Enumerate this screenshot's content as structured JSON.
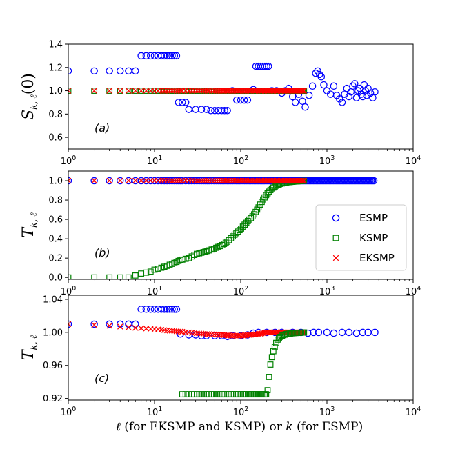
{
  "chart_data": [
    {
      "type": "scatter",
      "panel_tag": "(a)",
      "ylabel": "S_{k,ℓ}(0)",
      "ylabel_main": "S",
      "ylabel_sub": "k, ℓ",
      "ylabel_tail": "(0)",
      "xscale": "log",
      "xlim": [
        1,
        10000
      ],
      "ylim": [
        0.5,
        1.4
      ],
      "yticks": [
        "0.6",
        "0.8",
        "1.0",
        "1.2",
        "1.4"
      ],
      "ytick_values": [
        0.6,
        0.8,
        1.0,
        1.2,
        1.4
      ],
      "xticks": [
        "10^0",
        "10^1",
        "10^2",
        "10^3",
        "10^4"
      ],
      "series": [
        {
          "name": "ESMP",
          "marker": "circle",
          "color": "#0000ff",
          "points": [
            [
              1,
              1.17
            ],
            [
              2,
              1.17
            ],
            [
              3,
              1.17
            ],
            [
              4,
              1.17
            ],
            [
              5,
              1.17
            ],
            [
              6,
              1.17
            ],
            [
              7,
              1.3
            ],
            [
              8,
              1.3
            ],
            [
              9,
              1.3
            ],
            [
              10,
              1.3
            ],
            [
              11,
              1.3
            ],
            [
              12,
              1.3
            ],
            [
              13,
              1.3
            ],
            [
              14,
              1.3
            ],
            [
              15,
              1.3
            ],
            [
              16,
              1.3
            ],
            [
              17,
              1.3
            ],
            [
              18,
              1.3
            ],
            [
              19,
              0.9
            ],
            [
              21,
              0.9
            ],
            [
              23,
              0.9
            ],
            [
              25,
              0.84
            ],
            [
              30,
              0.84
            ],
            [
              35,
              0.84
            ],
            [
              40,
              0.84
            ],
            [
              45,
              0.83
            ],
            [
              50,
              0.83
            ],
            [
              55,
              0.83
            ],
            [
              60,
              0.83
            ],
            [
              65,
              0.83
            ],
            [
              70,
              0.83
            ],
            [
              80,
              1.0
            ],
            [
              90,
              0.92
            ],
            [
              100,
              0.92
            ],
            [
              110,
              0.92
            ],
            [
              120,
              0.92
            ],
            [
              140,
              1.01
            ],
            [
              150,
              1.21
            ],
            [
              160,
              1.21
            ],
            [
              170,
              1.21
            ],
            [
              180,
              1.21
            ],
            [
              190,
              1.21
            ],
            [
              200,
              1.21
            ],
            [
              210,
              1.21
            ],
            [
              230,
              1.0
            ],
            [
              260,
              1.0
            ],
            [
              300,
              0.98
            ],
            [
              330,
              1.0
            ],
            [
              360,
              1.02
            ],
            [
              400,
              0.95
            ],
            [
              430,
              0.9
            ],
            [
              470,
              0.97
            ],
            [
              520,
              0.91
            ],
            [
              560,
              0.86
            ],
            [
              620,
              0.96
            ],
            [
              680,
              1.04
            ],
            [
              740,
              1.15
            ],
            [
              780,
              1.17
            ],
            [
              820,
              1.14
            ],
            [
              860,
              1.12
            ],
            [
              920,
              1.05
            ],
            [
              1000,
              1.0
            ],
            [
              1100,
              0.97
            ],
            [
              1200,
              1.04
            ],
            [
              1300,
              0.96
            ],
            [
              1400,
              0.93
            ],
            [
              1500,
              0.9
            ],
            [
              1600,
              0.97
            ],
            [
              1700,
              1.02
            ],
            [
              1800,
              0.95
            ],
            [
              1900,
              0.99
            ],
            [
              2000,
              1.04
            ],
            [
              2100,
              1.06
            ],
            [
              2200,
              0.94
            ],
            [
              2300,
              1.0
            ],
            [
              2400,
              1.02
            ],
            [
              2500,
              0.97
            ],
            [
              2600,
              0.95
            ],
            [
              2700,
              1.05
            ],
            [
              2800,
              1.0
            ],
            [
              2900,
              0.96
            ],
            [
              3000,
              1.02
            ],
            [
              3200,
              0.98
            ],
            [
              3400,
              0.94
            ],
            [
              3600,
              0.99
            ]
          ]
        },
        {
          "name": "KSMP",
          "marker": "square",
          "color": "#008000",
          "const": 1.0,
          "xmax": 560
        },
        {
          "name": "EKSMP",
          "marker": "x",
          "color": "#ff0000",
          "const": 1.0,
          "xmax": 560
        }
      ]
    },
    {
      "type": "scatter",
      "panel_tag": "(b)",
      "ylabel_main": "T",
      "ylabel_sub": "k, ℓ",
      "ylabel_tail": "",
      "xscale": "log",
      "xlim": [
        1,
        10000
      ],
      "ylim": [
        -0.02,
        1.1
      ],
      "yticks": [
        "0.0",
        "0.2",
        "0.4",
        "0.6",
        "0.8",
        "1.0"
      ],
      "ytick_values": [
        0.0,
        0.2,
        0.4,
        0.6,
        0.8,
        1.0
      ],
      "xticks": [
        "10^0",
        "10^1",
        "10^2",
        "10^3",
        "10^4"
      ],
      "legend": {
        "position": "right",
        "entries": [
          "ESMP",
          "KSMP",
          "EKSMP"
        ]
      },
      "series": [
        {
          "name": "ESMP",
          "marker": "circle",
          "color": "#0000ff",
          "const": 1.0,
          "xmax": 3600
        },
        {
          "name": "KSMP",
          "marker": "square",
          "color": "#008000",
          "curve": [
            [
              1,
              0.0
            ],
            [
              2,
              0.0
            ],
            [
              3,
              0.0
            ],
            [
              4,
              0.0
            ],
            [
              5,
              0.0
            ],
            [
              6,
              0.02
            ],
            [
              7,
              0.04
            ],
            [
              8,
              0.05
            ],
            [
              9,
              0.06
            ],
            [
              10,
              0.08
            ],
            [
              12,
              0.1
            ],
            [
              14,
              0.12
            ],
            [
              17,
              0.15
            ],
            [
              20,
              0.18
            ],
            [
              25,
              0.2
            ],
            [
              30,
              0.24
            ],
            [
              40,
              0.27
            ],
            [
              50,
              0.3
            ],
            [
              60,
              0.33
            ],
            [
              70,
              0.37
            ],
            [
              80,
              0.42
            ],
            [
              100,
              0.5
            ],
            [
              120,
              0.58
            ],
            [
              140,
              0.64
            ],
            [
              160,
              0.72
            ],
            [
              180,
              0.8
            ],
            [
              200,
              0.86
            ],
            [
              230,
              0.92
            ],
            [
              270,
              0.96
            ],
            [
              320,
              0.98
            ],
            [
              400,
              0.99
            ],
            [
              560,
              1.0
            ]
          ]
        },
        {
          "name": "EKSMP",
          "marker": "x",
          "color": "#ff0000",
          "const": 1.0,
          "xmax": 560
        }
      ]
    },
    {
      "type": "scatter",
      "panel_tag": "(c)",
      "ylabel_main": "T",
      "ylabel_sub": "k, ℓ",
      "ylabel_tail": "",
      "xlabel": "ℓ (for EKSMP and KSMP) or k (for ESMP)",
      "xscale": "log",
      "xlim": [
        1,
        10000
      ],
      "ylim": [
        0.918,
        1.045
      ],
      "yticks": [
        "0.92",
        "0.96",
        "1.00",
        "1.04"
      ],
      "ytick_values": [
        0.92,
        0.96,
        1.0,
        1.04
      ],
      "xticks": [
        "10^0",
        "10^1",
        "10^2",
        "10^3",
        "10^4"
      ],
      "series": [
        {
          "name": "ESMP",
          "marker": "circle",
          "color": "#0000ff",
          "points": [
            [
              1,
              1.01
            ],
            [
              2,
              1.01
            ],
            [
              3,
              1.01
            ],
            [
              4,
              1.01
            ],
            [
              5,
              1.01
            ],
            [
              6,
              1.01
            ],
            [
              7,
              1.028
            ],
            [
              8,
              1.028
            ],
            [
              9,
              1.028
            ],
            [
              10,
              1.028
            ],
            [
              11,
              1.028
            ],
            [
              12,
              1.028
            ],
            [
              13,
              1.028
            ],
            [
              14,
              1.028
            ],
            [
              15,
              1.028
            ],
            [
              16,
              1.028
            ],
            [
              17,
              1.028
            ],
            [
              18,
              1.028
            ],
            [
              20,
              0.998
            ],
            [
              25,
              0.997
            ],
            [
              30,
              0.997
            ],
            [
              35,
              0.996
            ],
            [
              40,
              0.996
            ],
            [
              50,
              0.996
            ],
            [
              60,
              0.996
            ],
            [
              70,
              0.995
            ],
            [
              80,
              0.996
            ],
            [
              100,
              0.996
            ],
            [
              120,
              0.997
            ],
            [
              140,
              0.999
            ],
            [
              160,
              1.0
            ],
            [
              200,
              1.0
            ],
            [
              250,
              1.0
            ],
            [
              300,
              1.0
            ],
            [
              400,
              1.0
            ],
            [
              500,
              1.0
            ],
            [
              600,
              0.999
            ],
            [
              700,
              1.0
            ],
            [
              800,
              1.0
            ],
            [
              1000,
              1.0
            ],
            [
              1200,
              0.999
            ],
            [
              1500,
              1.0
            ],
            [
              1800,
              1.0
            ],
            [
              2200,
              0.999
            ],
            [
              2600,
              1.0
            ],
            [
              3000,
              1.0
            ],
            [
              3600,
              1.0
            ]
          ]
        },
        {
          "name": "EKSMP",
          "marker": "x",
          "color": "#ff0000",
          "curve": [
            [
              1,
              1.01
            ],
            [
              2,
              1.009
            ],
            [
              3,
              1.008
            ],
            [
              4,
              1.007
            ],
            [
              5,
              1.006
            ],
            [
              7,
              1.005
            ],
            [
              10,
              1.004
            ],
            [
              15,
              1.002
            ],
            [
              20,
              1.001
            ],
            [
              30,
              0.999
            ],
            [
              40,
              0.998
            ],
            [
              60,
              0.997
            ],
            [
              80,
              0.996
            ],
            [
              100,
              0.996
            ],
            [
              130,
              0.997
            ],
            [
              160,
              0.998
            ],
            [
              200,
              1.0
            ],
            [
              300,
              1.0
            ],
            [
              560,
              1.0
            ]
          ]
        },
        {
          "name": "KSMP",
          "marker": "square",
          "color": "#008000",
          "curve": [
            [
              200,
              0.925
            ],
            [
              205,
              0.93
            ],
            [
              210,
              0.94
            ],
            [
              215,
              0.95
            ],
            [
              220,
              0.96
            ],
            [
              230,
              0.97
            ],
            [
              240,
              0.978
            ],
            [
              255,
              0.986
            ],
            [
              270,
              0.992
            ],
            [
              300,
              0.996
            ],
            [
              340,
              0.998
            ],
            [
              400,
              0.999
            ],
            [
              560,
              1.0
            ]
          ]
        }
      ]
    }
  ]
}
